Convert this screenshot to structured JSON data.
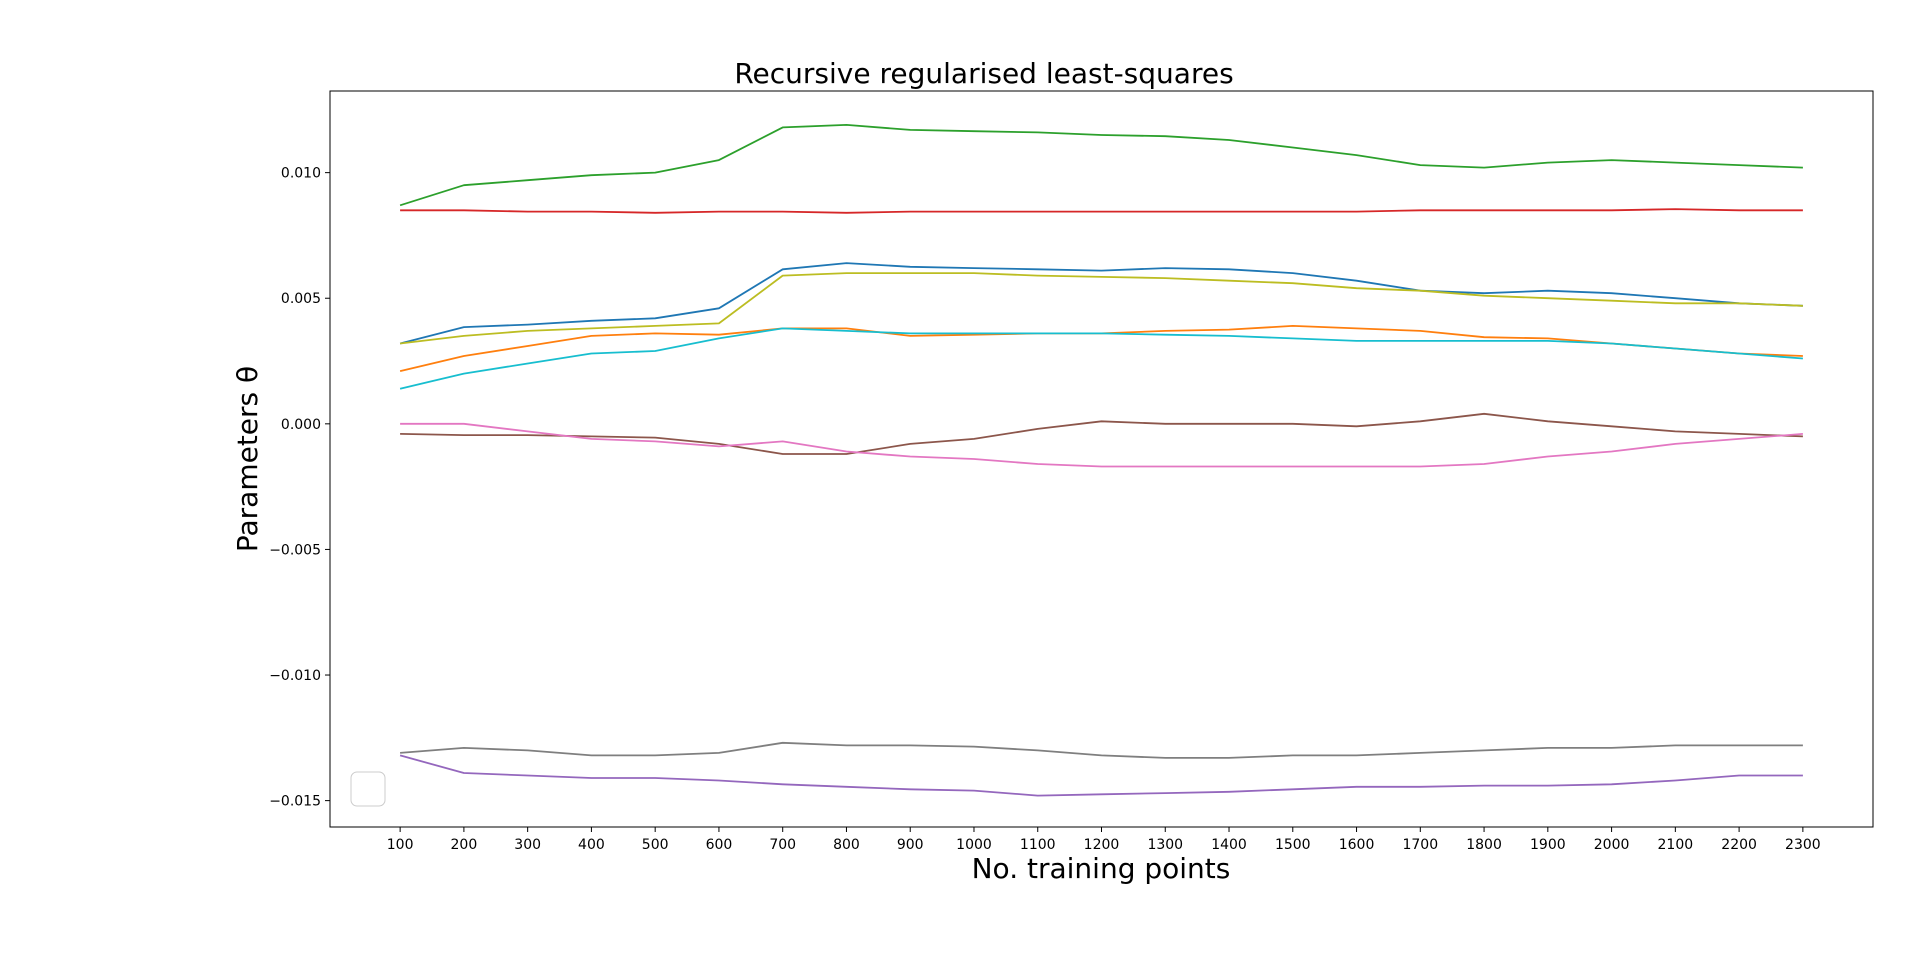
{
  "chart_data": {
    "type": "line",
    "title": "Recursive regularised least-squares",
    "xlabel": "No. training points",
    "ylabel": "Parameters θ",
    "xlim": [
      -10,
      2410
    ],
    "ylim": [
      -0.01605,
      0.01325
    ],
    "x": [
      100,
      200,
      300,
      400,
      500,
      600,
      700,
      800,
      900,
      1000,
      1100,
      1200,
      1300,
      1400,
      1500,
      1600,
      1700,
      1800,
      1900,
      2000,
      2100,
      2200,
      2300
    ],
    "x_ticks": [
      100,
      200,
      300,
      400,
      500,
      600,
      700,
      800,
      900,
      1000,
      1100,
      1200,
      1300,
      1400,
      1500,
      1600,
      1700,
      1800,
      1900,
      2000,
      2100,
      2200,
      2300
    ],
    "y_ticks": [
      0.01,
      0.005,
      0.0,
      -0.005,
      -0.01,
      -0.015
    ],
    "y_tick_labels": [
      "0.010",
      "0.005",
      "0.000",
      "−0.005",
      "−0.010",
      "−0.015"
    ],
    "grid": false,
    "legend": {
      "position": "lower-left",
      "entries": []
    },
    "series": [
      {
        "color": "#1f77b4",
        "values": [
          0.0032,
          0.00385,
          0.00395,
          0.0041,
          0.0042,
          0.0046,
          0.00615,
          0.0064,
          0.00625,
          0.0062,
          0.00615,
          0.0061,
          0.0062,
          0.00615,
          0.006,
          0.0057,
          0.0053,
          0.0052,
          0.0053,
          0.0052,
          0.005,
          0.0048,
          0.0047
        ]
      },
      {
        "color": "#ff7f0e",
        "values": [
          0.0021,
          0.0027,
          0.0031,
          0.0035,
          0.0036,
          0.00355,
          0.0038,
          0.0038,
          0.0035,
          0.00355,
          0.0036,
          0.0036,
          0.0037,
          0.00375,
          0.0039,
          0.0038,
          0.0037,
          0.00345,
          0.0034,
          0.0032,
          0.003,
          0.0028,
          0.0027
        ]
      },
      {
        "color": "#2ca02c",
        "values": [
          0.0087,
          0.0095,
          0.0097,
          0.0099,
          0.01,
          0.0105,
          0.0118,
          0.0119,
          0.0117,
          0.01165,
          0.0116,
          0.0115,
          0.01145,
          0.0113,
          0.011,
          0.0107,
          0.0103,
          0.0102,
          0.0104,
          0.0105,
          0.0104,
          0.0103,
          0.0102
        ]
      },
      {
        "color": "#d62728",
        "values": [
          0.0085,
          0.0085,
          0.00845,
          0.00845,
          0.0084,
          0.00845,
          0.00845,
          0.0084,
          0.00845,
          0.00845,
          0.00845,
          0.00845,
          0.00845,
          0.00845,
          0.00845,
          0.00845,
          0.0085,
          0.0085,
          0.0085,
          0.0085,
          0.00855,
          0.0085,
          0.0085
        ]
      },
      {
        "color": "#9467bd",
        "values": [
          -0.0132,
          -0.0139,
          -0.014,
          -0.0141,
          -0.0141,
          -0.0142,
          -0.01435,
          -0.01445,
          -0.01455,
          -0.0146,
          -0.0148,
          -0.01475,
          -0.0147,
          -0.01465,
          -0.01455,
          -0.01445,
          -0.01445,
          -0.0144,
          -0.0144,
          -0.01435,
          -0.0142,
          -0.014,
          -0.014
        ]
      },
      {
        "color": "#8c564b",
        "values": [
          -0.0004,
          -0.00045,
          -0.00045,
          -0.0005,
          -0.00055,
          -0.0008,
          -0.0012,
          -0.0012,
          -0.0008,
          -0.0006,
          -0.0002,
          0.0001,
          0.0,
          0.0,
          0.0,
          -0.0001,
          0.0001,
          0.0004,
          0.0001,
          -0.0001,
          -0.0003,
          -0.0004,
          -0.0005
        ]
      },
      {
        "color": "#e377c2",
        "values": [
          0.0,
          0.0,
          -0.0003,
          -0.0006,
          -0.0007,
          -0.0009,
          -0.0007,
          -0.0011,
          -0.0013,
          -0.0014,
          -0.0016,
          -0.0017,
          -0.0017,
          -0.0017,
          -0.0017,
          -0.0017,
          -0.0017,
          -0.0016,
          -0.0013,
          -0.0011,
          -0.0008,
          -0.0006,
          -0.0004
        ]
      },
      {
        "color": "#7f7f7f",
        "values": [
          -0.0131,
          -0.0129,
          -0.013,
          -0.0132,
          -0.0132,
          -0.0131,
          -0.0127,
          -0.0128,
          -0.0128,
          -0.01285,
          -0.013,
          -0.0132,
          -0.0133,
          -0.0133,
          -0.0132,
          -0.0132,
          -0.0131,
          -0.013,
          -0.0129,
          -0.0129,
          -0.0128,
          -0.0128,
          -0.0128
        ]
      },
      {
        "color": "#bcbd22",
        "values": [
          0.0032,
          0.0035,
          0.0037,
          0.0038,
          0.0039,
          0.004,
          0.0059,
          0.006,
          0.006,
          0.006,
          0.0059,
          0.00585,
          0.0058,
          0.0057,
          0.0056,
          0.0054,
          0.0053,
          0.0051,
          0.005,
          0.0049,
          0.0048,
          0.0048,
          0.0047
        ]
      },
      {
        "color": "#17becf",
        "values": [
          0.0014,
          0.002,
          0.0024,
          0.0028,
          0.0029,
          0.0034,
          0.0038,
          0.0037,
          0.0036,
          0.0036,
          0.0036,
          0.0036,
          0.00355,
          0.0035,
          0.0034,
          0.0033,
          0.0033,
          0.0033,
          0.0033,
          0.0032,
          0.003,
          0.0028,
          0.0026
        ]
      }
    ]
  }
}
